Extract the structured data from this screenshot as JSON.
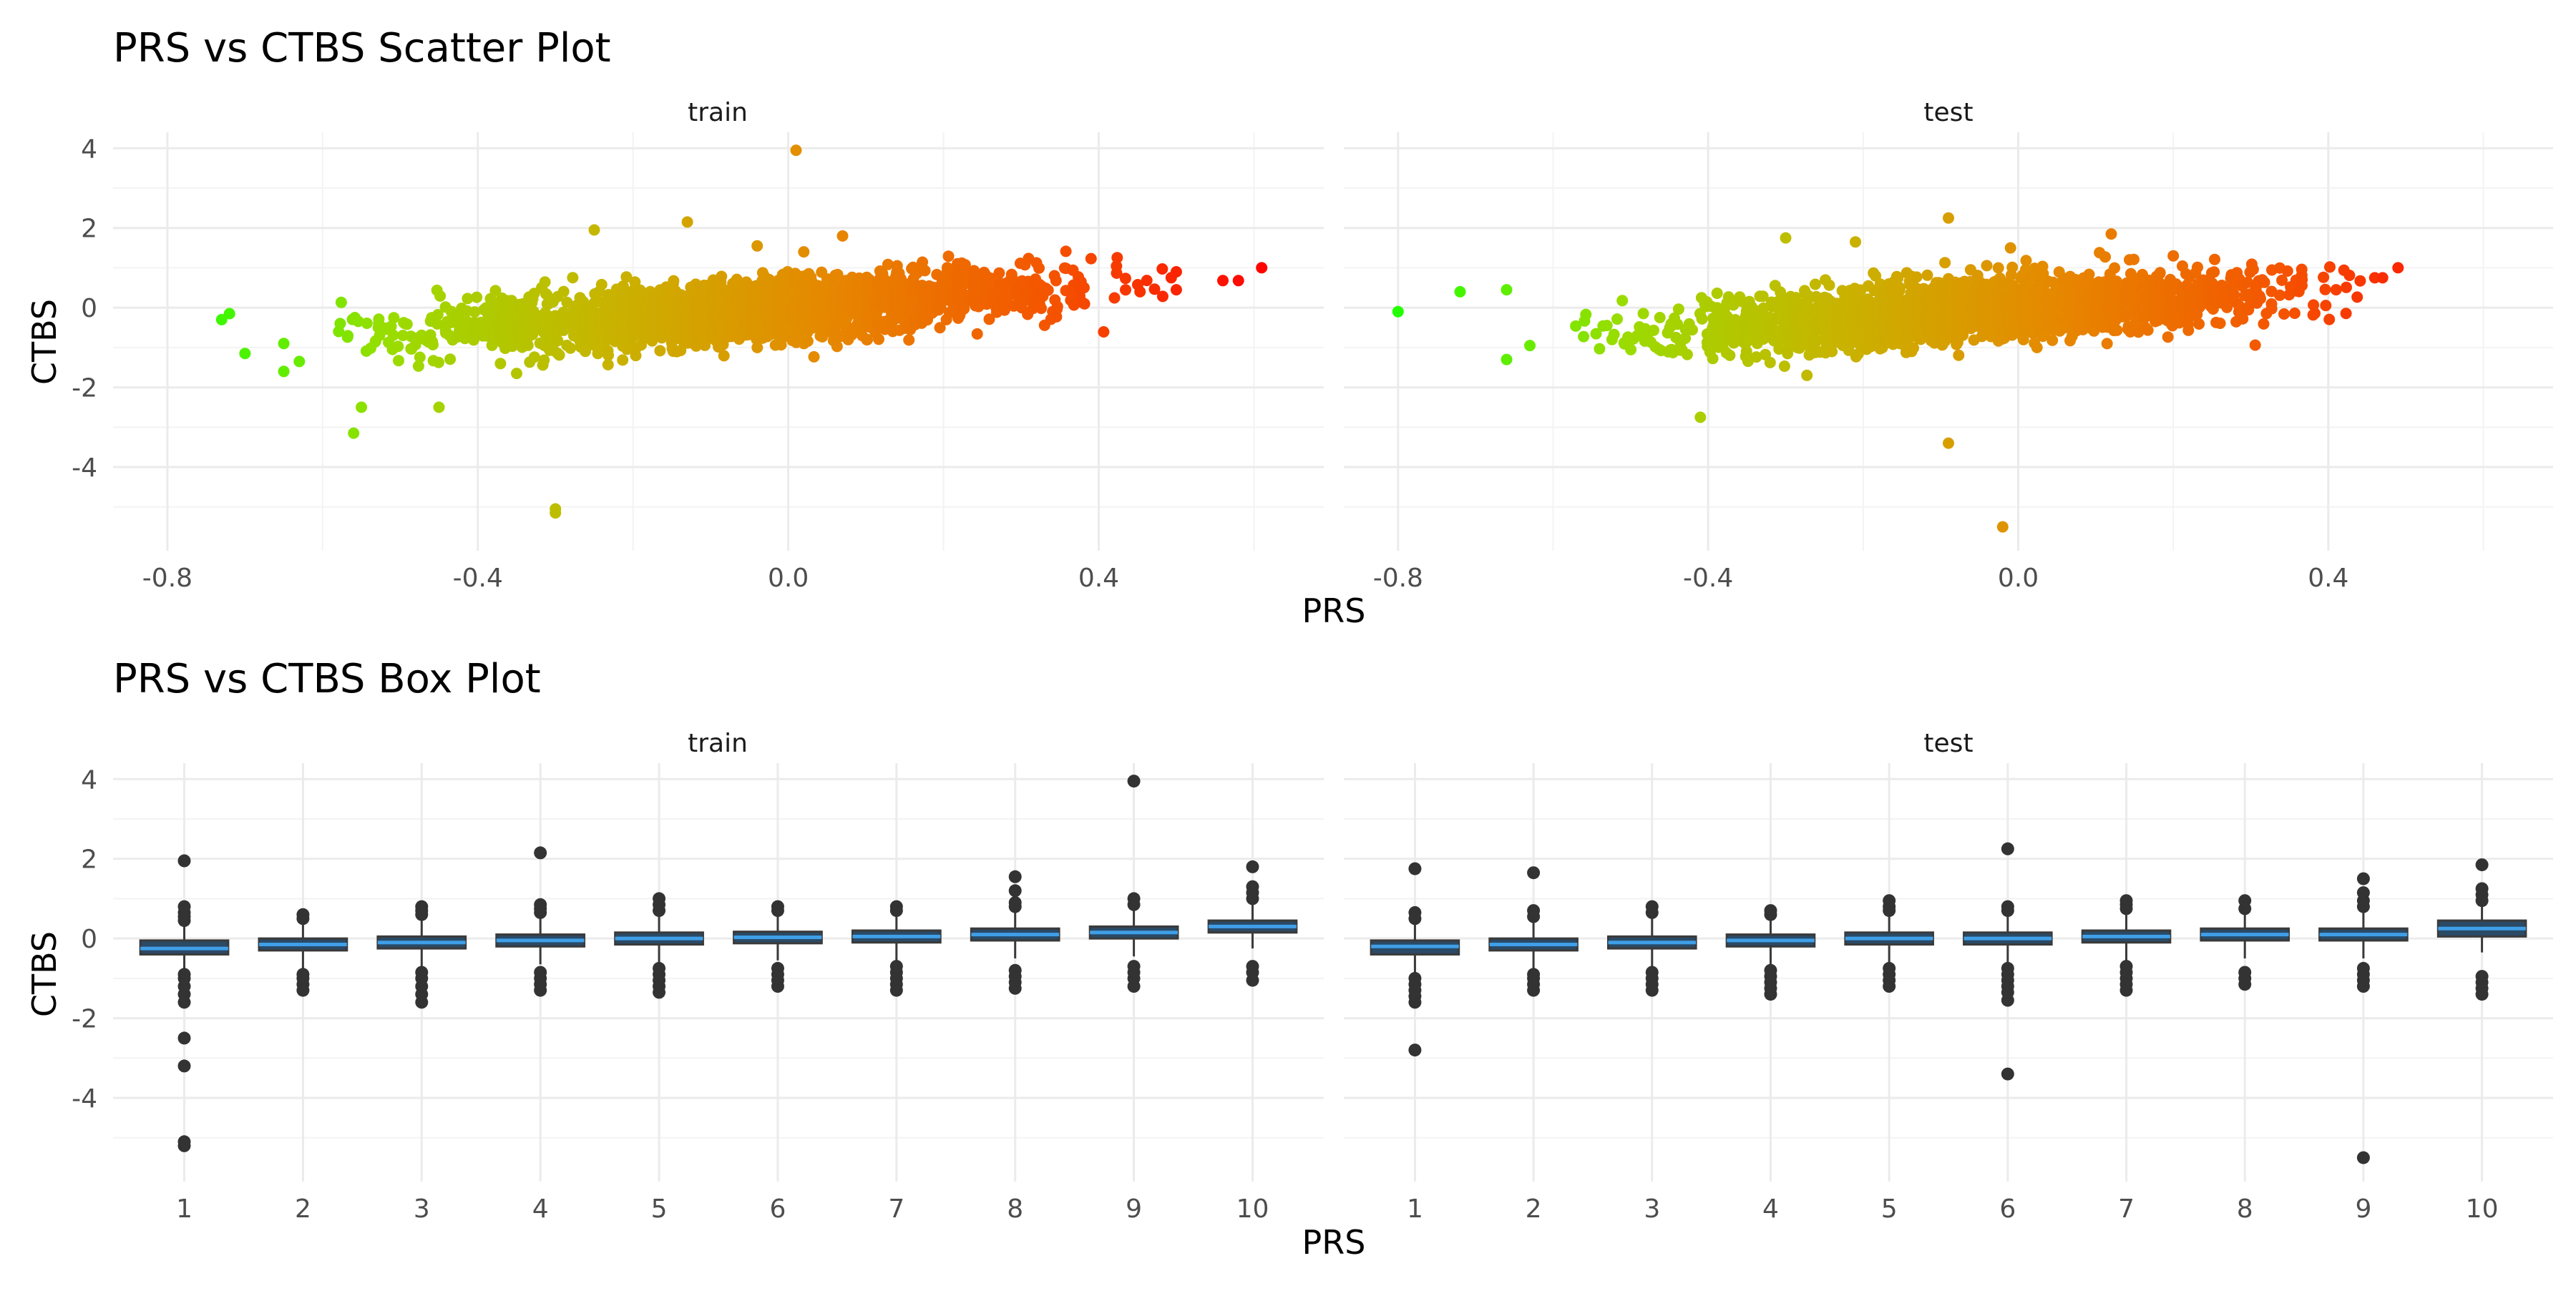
{
  "chart_data": [
    {
      "type": "scatter",
      "title": "PRS vs CTBS Scatter Plot",
      "xlabel": "PRS",
      "ylabel": "CTBS",
      "xlim": [
        -0.87,
        0.69
      ],
      "ylim": [
        -6.1,
        4.4
      ],
      "x_ticks": [
        -0.8,
        -0.4,
        0.0,
        0.4
      ],
      "x_tick_labels": [
        "-0.8",
        "-0.4",
        "0.0",
        "0.4"
      ],
      "y_ticks": [
        -4,
        -2,
        0,
        2,
        4
      ],
      "y_tick_labels": [
        "-4",
        "-2",
        "0",
        "2",
        "4"
      ],
      "grid": true,
      "color_encoding": "gradient by PRS: green (low) to red (high)",
      "color_stops": [
        "#22ff00",
        "#99dd00",
        "#c8b400",
        "#e68800",
        "#f45500",
        "#ff0000"
      ],
      "approx_trend": {
        "slope": 1.3,
        "intercept": 0.0
      },
      "facets": [
        {
          "name": "train",
          "cloud": {
            "x_range": [
              -0.58,
              0.5
            ],
            "x_center": -0.06,
            "x_sd": 0.2,
            "y_sd": 0.38
          },
          "outliers": [
            {
              "x": -0.72,
              "y": -0.15
            },
            {
              "x": -0.73,
              "y": -0.3
            },
            {
              "x": -0.7,
              "y": -1.15
            },
            {
              "x": -0.65,
              "y": -0.9
            },
            {
              "x": -0.65,
              "y": -1.6
            },
            {
              "x": -0.63,
              "y": -1.35
            },
            {
              "x": -0.55,
              "y": -2.5
            },
            {
              "x": -0.56,
              "y": -3.15
            },
            {
              "x": -0.45,
              "y": -2.5
            },
            {
              "x": -0.3,
              "y": -5.05
            },
            {
              "x": -0.3,
              "y": -5.15
            },
            {
              "x": -0.25,
              "y": 1.95
            },
            {
              "x": -0.13,
              "y": 2.15
            },
            {
              "x": -0.04,
              "y": 1.55
            },
            {
              "x": 0.01,
              "y": 3.95
            },
            {
              "x": 0.02,
              "y": 1.4
            },
            {
              "x": 0.07,
              "y": 1.8
            },
            {
              "x": -0.35,
              "y": -1.65
            },
            {
              "x": 0.5,
              "y": 0.9
            },
            {
              "x": 0.5,
              "y": 0.45
            },
            {
              "x": 0.56,
              "y": 0.68
            },
            {
              "x": 0.58,
              "y": 0.68
            },
            {
              "x": 0.61,
              "y": 1.0
            }
          ]
        },
        {
          "name": "test",
          "cloud": {
            "x_range": [
              -0.58,
              0.45
            ],
            "x_center": -0.06,
            "x_sd": 0.18,
            "y_sd": 0.38
          },
          "outliers": [
            {
              "x": -0.8,
              "y": -0.1
            },
            {
              "x": -0.72,
              "y": 0.4
            },
            {
              "x": -0.66,
              "y": 0.45
            },
            {
              "x": -0.66,
              "y": -1.3
            },
            {
              "x": -0.63,
              "y": -0.95
            },
            {
              "x": -0.41,
              "y": -2.75
            },
            {
              "x": -0.3,
              "y": 1.75
            },
            {
              "x": -0.21,
              "y": 1.65
            },
            {
              "x": -0.09,
              "y": 2.25
            },
            {
              "x": -0.09,
              "y": -3.4
            },
            {
              "x": -0.01,
              "y": 1.5
            },
            {
              "x": -0.02,
              "y": -5.5
            },
            {
              "x": 0.12,
              "y": 1.85
            },
            {
              "x": 0.2,
              "y": 1.3
            },
            {
              "x": 0.41,
              "y": 0.45
            },
            {
              "x": 0.46,
              "y": 0.75
            },
            {
              "x": 0.47,
              "y": 0.75
            },
            {
              "x": 0.49,
              "y": 1.0
            }
          ]
        }
      ]
    },
    {
      "type": "box",
      "title": "PRS vs CTBS Box Plot",
      "xlabel": "PRS",
      "ylabel": "CTBS",
      "categories": [
        "1",
        "2",
        "3",
        "4",
        "5",
        "6",
        "7",
        "8",
        "9",
        "10"
      ],
      "ylim": [
        -6.1,
        4.4
      ],
      "y_ticks": [
        -4,
        -2,
        0,
        2,
        4
      ],
      "y_tick_labels": [
        "-4",
        "-2",
        "0",
        "2",
        "4"
      ],
      "grid": true,
      "box_fill": "#2a4a66",
      "box_outline": "#3a3a3a",
      "median_color": "#3f9fe8",
      "facets": [
        {
          "name": "train",
          "boxes": [
            {
              "q1": -0.4,
              "median": -0.25,
              "q3": -0.05,
              "whisker_low": -0.85,
              "whisker_high": 0.35,
              "outliers": [
                -5.2,
                -5.1,
                -3.2,
                -2.5,
                -1.6,
                -1.4,
                -1.2,
                -1.0,
                -0.9,
                0.45,
                0.55,
                0.65,
                0.8,
                1.95
              ]
            },
            {
              "q1": -0.3,
              "median": -0.15,
              "q3": 0.0,
              "whisker_low": -0.75,
              "whisker_high": 0.45,
              "outliers": [
                -1.3,
                -1.15,
                -1.0,
                -0.9,
                0.5,
                0.6
              ]
            },
            {
              "q1": -0.25,
              "median": -0.1,
              "q3": 0.05,
              "whisker_low": -0.7,
              "whisker_high": 0.5,
              "outliers": [
                -1.6,
                -1.4,
                -1.2,
                -1.0,
                -0.85,
                0.6,
                0.7,
                0.8
              ]
            },
            {
              "q1": -0.2,
              "median": -0.05,
              "q3": 0.1,
              "whisker_low": -0.65,
              "whisker_high": 0.55,
              "outliers": [
                -1.3,
                -1.15,
                -1.0,
                -0.85,
                0.65,
                0.75,
                0.85,
                2.15
              ]
            },
            {
              "q1": -0.15,
              "median": 0.0,
              "q3": 0.15,
              "whisker_low": -0.6,
              "whisker_high": 0.6,
              "outliers": [
                -1.35,
                -1.2,
                -1.05,
                -0.9,
                -0.75,
                0.7,
                0.85,
                1.0
              ]
            },
            {
              "q1": -0.12,
              "median": 0.03,
              "q3": 0.17,
              "whisker_low": -0.55,
              "whisker_high": 0.6,
              "outliers": [
                -1.2,
                -1.05,
                -0.9,
                -0.75,
                0.7,
                0.8
              ]
            },
            {
              "q1": -0.1,
              "median": 0.05,
              "q3": 0.2,
              "whisker_low": -0.55,
              "whisker_high": 0.65,
              "outliers": [
                -1.3,
                -1.15,
                -1.0,
                -0.85,
                -0.7,
                0.7,
                0.8
              ]
            },
            {
              "q1": -0.05,
              "median": 0.1,
              "q3": 0.25,
              "whisker_low": -0.5,
              "whisker_high": 0.7,
              "outliers": [
                -1.25,
                -1.1,
                -0.95,
                -0.8,
                0.8,
                0.9,
                1.2,
                1.55
              ]
            },
            {
              "q1": 0.0,
              "median": 0.15,
              "q3": 0.3,
              "whisker_low": -0.45,
              "whisker_high": 0.75,
              "outliers": [
                -1.2,
                -1.0,
                -0.85,
                -0.7,
                0.85,
                1.0,
                3.95
              ]
            },
            {
              "q1": 0.15,
              "median": 0.3,
              "q3": 0.45,
              "whisker_low": -0.25,
              "whisker_high": 0.85,
              "outliers": [
                -1.05,
                -0.85,
                -0.7,
                1.0,
                1.15,
                1.3,
                1.8
              ]
            }
          ]
        },
        {
          "name": "test",
          "boxes": [
            {
              "q1": -0.4,
              "median": -0.2,
              "q3": -0.05,
              "whisker_low": -0.85,
              "whisker_high": 0.4,
              "outliers": [
                -2.8,
                -1.6,
                -1.45,
                -1.3,
                -1.15,
                -1.0,
                0.5,
                0.65,
                1.75
              ]
            },
            {
              "q1": -0.3,
              "median": -0.15,
              "q3": 0.0,
              "whisker_low": -0.75,
              "whisker_high": 0.45,
              "outliers": [
                -1.3,
                -1.15,
                -1.0,
                -0.9,
                0.55,
                0.7,
                1.65
              ]
            },
            {
              "q1": -0.25,
              "median": -0.1,
              "q3": 0.05,
              "whisker_low": -0.7,
              "whisker_high": 0.55,
              "outliers": [
                -1.3,
                -1.15,
                -1.0,
                -0.85,
                0.65,
                0.8
              ]
            },
            {
              "q1": -0.2,
              "median": -0.05,
              "q3": 0.1,
              "whisker_low": -0.65,
              "whisker_high": 0.5,
              "outliers": [
                -1.4,
                -1.25,
                -1.1,
                -0.95,
                -0.8,
                0.6,
                0.7
              ]
            },
            {
              "q1": -0.15,
              "median": 0.0,
              "q3": 0.15,
              "whisker_low": -0.6,
              "whisker_high": 0.6,
              "outliers": [
                -1.2,
                -1.05,
                -0.9,
                -0.75,
                0.7,
                0.8,
                0.95
              ]
            },
            {
              "q1": -0.15,
              "median": 0.0,
              "q3": 0.15,
              "whisker_low": -0.6,
              "whisker_high": 0.6,
              "outliers": [
                -3.4,
                -1.55,
                -1.35,
                -1.2,
                -1.05,
                -0.9,
                -0.75,
                0.7,
                0.8,
                2.25
              ]
            },
            {
              "q1": -0.1,
              "median": 0.05,
              "q3": 0.2,
              "whisker_low": -0.55,
              "whisker_high": 0.65,
              "outliers": [
                -1.3,
                -1.15,
                -1.0,
                -0.85,
                -0.7,
                0.75,
                0.85,
                0.95
              ]
            },
            {
              "q1": -0.05,
              "median": 0.1,
              "q3": 0.25,
              "whisker_low": -0.5,
              "whisker_high": 0.65,
              "outliers": [
                -1.15,
                -1.0,
                -0.85,
                0.75,
                0.95
              ]
            },
            {
              "q1": -0.05,
              "median": 0.1,
              "q3": 0.25,
              "whisker_low": -0.5,
              "whisker_high": 0.7,
              "outliers": [
                -5.5,
                -1.2,
                -1.05,
                -0.9,
                -0.75,
                0.8,
                0.95,
                1.15,
                1.5
              ]
            },
            {
              "q1": 0.05,
              "median": 0.25,
              "q3": 0.45,
              "whisker_low": -0.35,
              "whisker_high": 0.85,
              "outliers": [
                -1.4,
                -1.25,
                -1.1,
                -0.95,
                0.95,
                1.1,
                1.25,
                1.85
              ]
            }
          ]
        }
      ]
    }
  ]
}
